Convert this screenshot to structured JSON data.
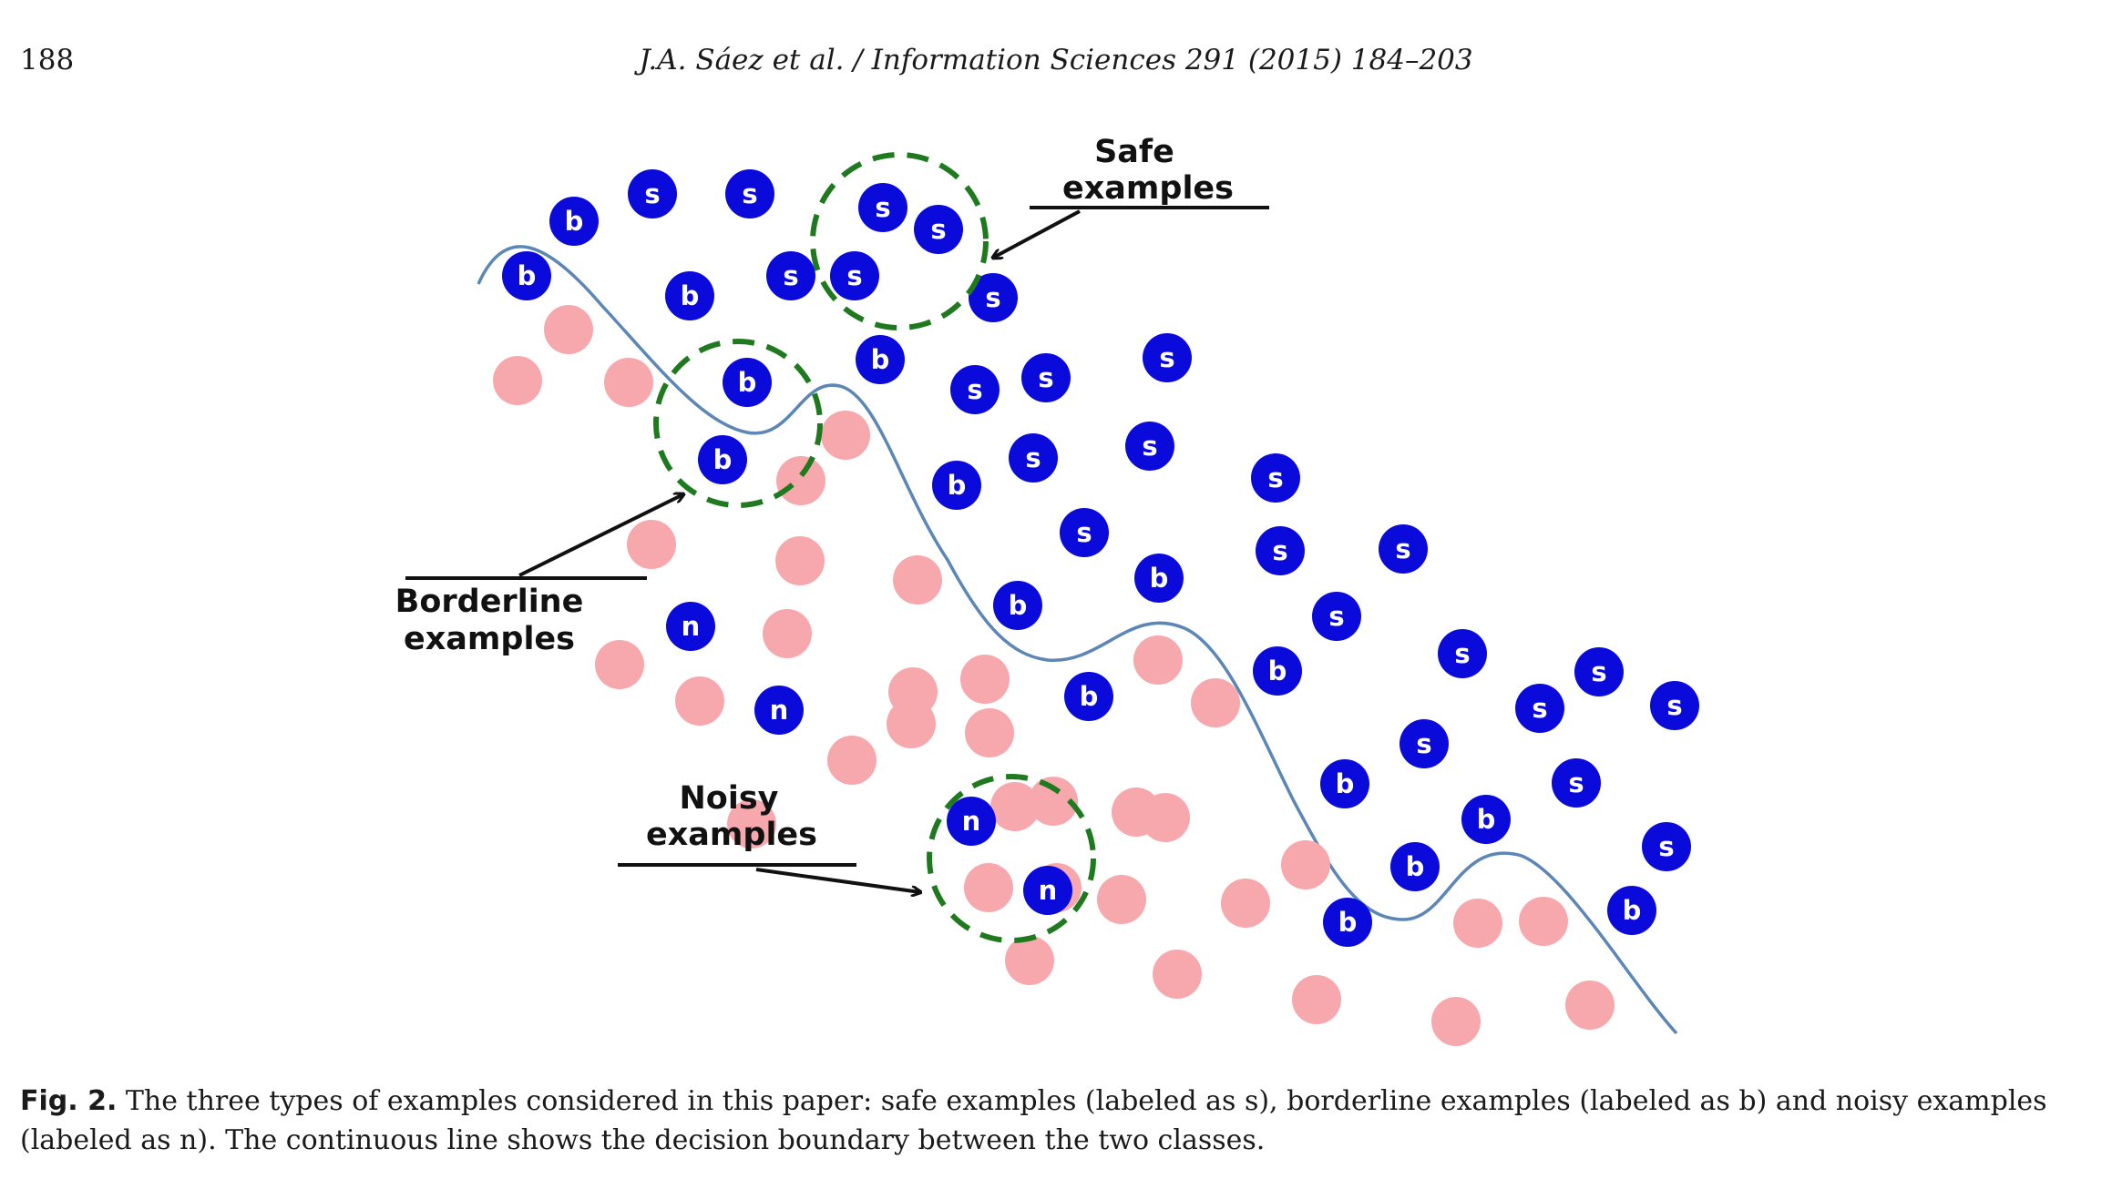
{
  "header": {
    "page_number": "188",
    "running_head": "J.A. Sáez et al. / Information Sciences 291 (2015) 184–203"
  },
  "figure": {
    "callouts": {
      "safe": [
        "Safe",
        "examples"
      ],
      "borderline": [
        "Borderline",
        "examples"
      ],
      "noisy": [
        "Noisy",
        "examples"
      ]
    },
    "colors": {
      "blue_class": "#0a0adb",
      "pink_class": "#f7a8ad",
      "boundary": "#5b86b5",
      "highlight": "#1f7a1f"
    },
    "point_labels": {
      "safe": "s",
      "borderline": "b",
      "noisy": "n"
    }
  },
  "caption": {
    "label": "Fig. 2.",
    "text": "The three types of examples considered in this paper: safe examples (labeled as s), borderline examples (labeled as b) and noisy examples (labeled as n). The continuous line shows the decision boundary between the two classes."
  }
}
